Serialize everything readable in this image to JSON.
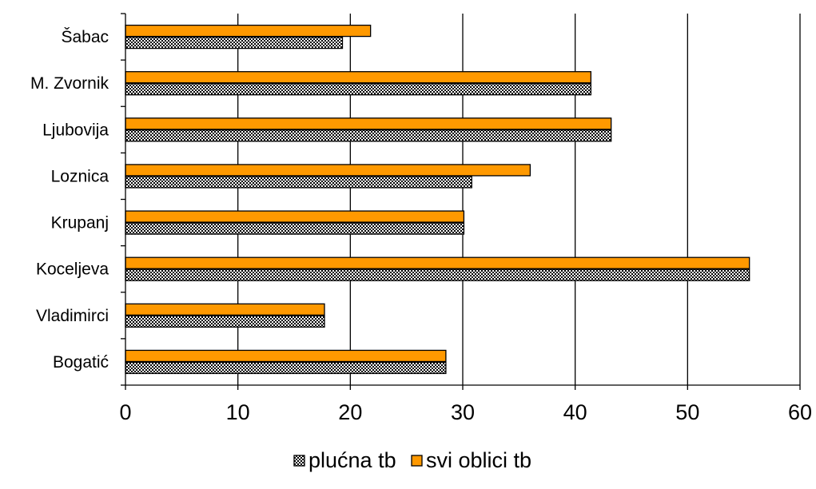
{
  "chart_data": {
    "type": "bar",
    "orientation": "horizontal",
    "categories": [
      "Šabac",
      "M. Zvornik",
      "Ljubovija",
      "Loznica",
      "Krupanj",
      "Koceljeva",
      "Vladimirci",
      "Bogatić"
    ],
    "series": [
      {
        "name": "plućna tb",
        "pattern": "checkered",
        "color": "#000000",
        "values": [
          19.3,
          41.4,
          43.2,
          30.8,
          30.1,
          55.5,
          17.7,
          28.5
        ]
      },
      {
        "name": "svi oblici tb",
        "color": "#FF9900",
        "values": [
          21.8,
          41.4,
          43.2,
          36.0,
          30.1,
          55.5,
          17.7,
          28.5
        ]
      }
    ],
    "xlim": [
      0,
      60
    ],
    "xticks": [
      "0",
      "10",
      "20",
      "30",
      "40",
      "50",
      "60"
    ],
    "grid": "vertical",
    "legend": "bottom"
  }
}
